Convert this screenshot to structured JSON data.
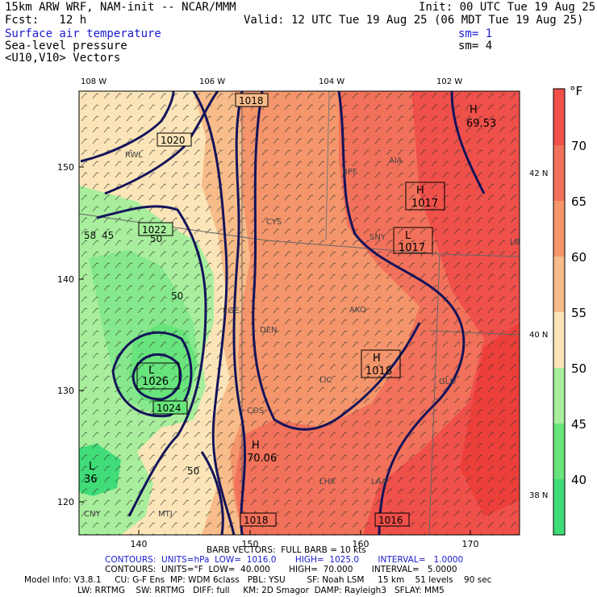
{
  "header": {
    "model_line": "15km ARW WRF, NAM-init -- NCAR/MMM",
    "init_line": "Init: 00 UTC Tue 19 Aug 25",
    "fcst_line": "Fcst:   12 h",
    "valid_line": "Valid: 12 UTC Tue 19 Aug 25 (06 MDT Tue 19 Aug 25)",
    "field1": "Surface air temperature",
    "field1_sm": "sm= 1",
    "field2": "Sea-level pressure",
    "field2_sm": "sm= 4",
    "field3": "<U10,V10> Vectors"
  },
  "axes": {
    "top_lon": [
      "108 W",
      "106 W",
      "104 W",
      "102 W"
    ],
    "right_lat": [
      "42 N",
      "40 N",
      "38 N"
    ],
    "left_ticks": [
      "150",
      "140",
      "130",
      "120"
    ],
    "bottom_ticks": [
      "140",
      "150",
      "160",
      "170"
    ]
  },
  "colorbar": {
    "unit": "°F",
    "labels": [
      "70",
      "65",
      "60",
      "55",
      "50",
      "45",
      "40"
    ],
    "colors": [
      "#f0504a",
      "#f2715a",
      "#f4956b",
      "#f7bc89",
      "#fbe5b8",
      "#a8ee9c",
      "#68e47c",
      "#3fdc78"
    ]
  },
  "map": {
    "pressure_labels": [
      "1018",
      "1020",
      "1022",
      "1024",
      "1017",
      "1016",
      "1018",
      "1018"
    ],
    "highs_lows": [
      {
        "kind": "H",
        "value": "69.53"
      },
      {
        "kind": "H",
        "value": "1017"
      },
      {
        "kind": "L",
        "value": "1017"
      },
      {
        "kind": "H",
        "value": "1018"
      },
      {
        "kind": "H",
        "value": "70.06"
      },
      {
        "kind": "L",
        "value": "1026"
      },
      {
        "kind": "L",
        "value": "36"
      }
    ],
    "temp_labels": [
      "58",
      "45",
      "50",
      "50",
      "50",
      "50",
      "50"
    ],
    "stations": [
      "RWL",
      "CYS",
      "SNY",
      "AKO",
      "LIC",
      "GLD",
      "LHX",
      "LAA",
      "DEN",
      "COS",
      "BPF",
      "AIA",
      "LBF",
      "EGE",
      "MTJ",
      "CNY"
    ]
  },
  "footer": {
    "barb_line": "BARB VECTORS:  FULL BARB = 10 kts",
    "contours1": "CONTOURS:  UNITS=hPa  LOW=  1016.0       HIGH=  1025.0       INTERVAL=   1.0000",
    "contours2": "CONTOURS:  UNITS=°F  LOW=  40.000       HIGH=  70.000       INTERVAL=   5.0000",
    "model_info1": "Model Info: V3.8.1     CU: G-F Ens  MP: WDM 6class   PBL: YSU        SF: Noah LSM     15 km    51 levels    90 sec",
    "model_info2": "LW: RRTMG    SW: RRTMG   DIFF: full     KM: 2D Smagor  DAMP: Rayleigh3   SFLAY: MM5"
  }
}
